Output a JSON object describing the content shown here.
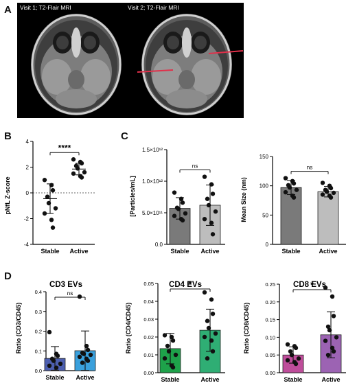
{
  "panel_letters": {
    "a": "A",
    "b": "B",
    "c": "C",
    "d": "D"
  },
  "mri": {
    "left_label": "Visit 1; T2-Flair MRI",
    "right_label": "Visit 2; T2-Flair MRI"
  },
  "colors": {
    "stable_gray": "#7a7a7a",
    "active_gray": "#bdbdbd",
    "cd3_stable": "#4d5fb0",
    "cd3_active": "#3aa0dc",
    "cd4_stable": "#1ea24a",
    "cd4_active": "#2fae74",
    "cd8_stable": "#bf4d9b",
    "cd8_active": "#9c63b3",
    "lesion_arrow": "#e0304a"
  },
  "chart_data": [
    {
      "id": "B",
      "type": "scatter",
      "title": "",
      "xlabel": "",
      "ylabel": "pNfL Z-score",
      "categories": [
        "Stable",
        "Active"
      ],
      "ylim": [
        -4,
        4
      ],
      "yticks": [
        -4,
        -2,
        0,
        2,
        4
      ],
      "yticklabels": [
        "-4",
        "-2",
        "0",
        "2",
        "4"
      ],
      "reference_line": 0,
      "series": [
        {
          "values": [
            1.0,
            0.6,
            0.2,
            -0.3,
            -0.8,
            -1.2,
            -1.6,
            -2.1,
            -2.7
          ]
        },
        {
          "values": [
            2.6,
            2.4,
            2.3,
            2.1,
            1.9,
            1.6,
            1.5,
            1.3,
            1.2
          ]
        }
      ],
      "means": [
        -0.45,
        1.85
      ],
      "sd": [
        1.15,
        0.45
      ],
      "significance": "****"
    },
    {
      "id": "C1",
      "type": "bar",
      "title": "",
      "xlabel": "",
      "ylabel": "[Particles/mL]",
      "categories": [
        "Stable",
        "Active"
      ],
      "ylim": [
        0,
        1.5
      ],
      "yticks": [
        0,
        0.5,
        1.0,
        1.5
      ],
      "yticklabels": [
        "0.0",
        "5.0×10¹¹",
        "1.0×10¹²",
        "1.5×10¹²"
      ],
      "values": [
        0.57,
        0.62
      ],
      "error": [
        0.17,
        0.32
      ],
      "points": [
        [
          0.82,
          0.72,
          0.66,
          0.58,
          0.56,
          0.49,
          0.45,
          0.4,
          0.38
        ],
        [
          1.07,
          0.95,
          0.8,
          0.72,
          0.62,
          0.52,
          0.4,
          0.34,
          0.16
        ]
      ],
      "significance": "ns"
    },
    {
      "id": "C2",
      "type": "bar",
      "title": "",
      "xlabel": "",
      "ylabel": "Mean Size (nm)",
      "categories": [
        "Stable",
        "Active"
      ],
      "ylim": [
        0,
        150
      ],
      "yticks": [
        0,
        50,
        100,
        150
      ],
      "yticklabels": [
        "0",
        "50",
        "100",
        "150"
      ],
      "values": [
        97,
        90
      ],
      "error": [
        12,
        9
      ],
      "points": [
        [
          113,
          108,
          104,
          101,
          97,
          93,
          89,
          83,
          80
        ],
        [
          105,
          100,
          96,
          93,
          90,
          88,
          85,
          83,
          80
        ]
      ],
      "significance": "ns"
    },
    {
      "id": "D1",
      "type": "bar",
      "title": "CD3 EVs",
      "xlabel": "",
      "ylabel": "Ratio (CD3/CD45)",
      "categories": [
        "Stable",
        "Active"
      ],
      "ylim": [
        0,
        0.4
      ],
      "yticks": [
        0,
        0.1,
        0.2,
        0.3,
        0.4
      ],
      "yticklabels": [
        "0.0",
        "0.1",
        "0.2",
        "0.3",
        "0.4"
      ],
      "values": [
        0.062,
        0.101
      ],
      "error": [
        0.06,
        0.1
      ],
      "points": [
        [
          0.195,
          0.085,
          0.075,
          0.06,
          0.05,
          0.035,
          0.025,
          0.015
        ],
        [
          0.375,
          0.125,
          0.105,
          0.09,
          0.085,
          0.08,
          0.07,
          0.06,
          0.05,
          0.04
        ]
      ],
      "significance": "ns"
    },
    {
      "id": "D2",
      "type": "bar",
      "title": "CD4 EVs",
      "xlabel": "",
      "ylabel": "Ratio (CD4/CD45)",
      "categories": [
        "Stable",
        "Active"
      ],
      "ylim": [
        0,
        0.05
      ],
      "yticks": [
        0,
        0.01,
        0.02,
        0.03,
        0.04,
        0.05
      ],
      "yticklabels": [
        "0.00",
        "0.01",
        "0.02",
        "0.03",
        "0.04",
        "0.05"
      ],
      "values": [
        0.0135,
        0.0238
      ],
      "error": [
        0.0085,
        0.0118
      ],
      "points": [
        [
          0.021,
          0.02,
          0.018,
          0.015,
          0.012,
          0.01,
          0.008,
          0.004,
          0.003
        ],
        [
          0.045,
          0.041,
          0.033,
          0.029,
          0.025,
          0.022,
          0.02,
          0.018,
          0.012,
          0.008
        ]
      ],
      "significance": "*"
    },
    {
      "id": "D3",
      "type": "bar",
      "title": "CD8 EVs",
      "xlabel": "",
      "ylabel": "Ratio (CD8/CD45)",
      "categories": [
        "Stable",
        "Active"
      ],
      "ylim": [
        0,
        0.25
      ],
      "yticks": [
        0,
        0.05,
        0.1,
        0.15,
        0.2,
        0.25
      ],
      "yticklabels": [
        "0.00",
        "0.05",
        "0.10",
        "0.15",
        "0.20",
        "0.25"
      ],
      "values": [
        0.05,
        0.107
      ],
      "error": [
        0.023,
        0.065
      ],
      "points": [
        [
          0.08,
          0.075,
          0.07,
          0.06,
          0.05,
          0.04,
          0.035,
          0.03,
          0.025
        ],
        [
          0.24,
          0.215,
          0.16,
          0.13,
          0.12,
          0.1,
          0.09,
          0.07,
          0.06,
          0.05
        ]
      ],
      "significance": "*"
    }
  ]
}
